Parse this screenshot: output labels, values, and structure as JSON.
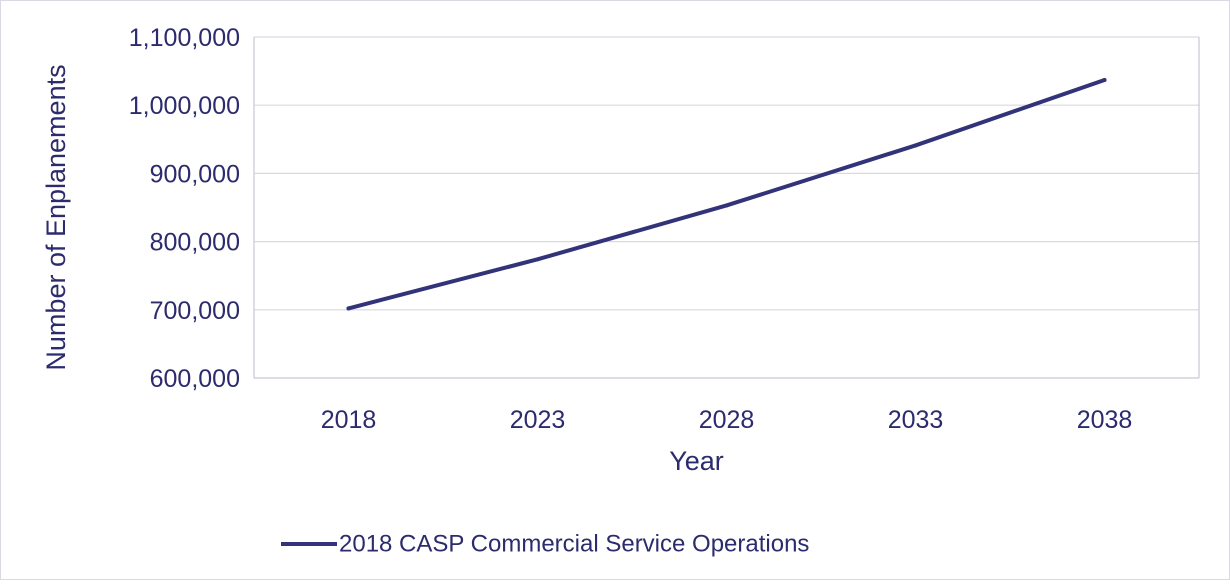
{
  "chart_data": {
    "type": "line",
    "title": "",
    "xlabel": "Year",
    "ylabel": "Number of Enplanements",
    "x": [
      "2018",
      "2023",
      "2028",
      "2033",
      "2038"
    ],
    "series": [
      {
        "name": "2018 CASP Commercial Service Operations",
        "values": [
          702000,
          774000,
          853000,
          941000,
          1037000
        ]
      }
    ],
    "ylim": [
      600000,
      1100000
    ],
    "yticks": [
      600000,
      700000,
      800000,
      900000,
      1000000,
      1100000
    ],
    "ytick_labels": [
      "600,000",
      "700,000",
      "800,000",
      "900,000",
      "1,000,000",
      "1,100,000"
    ],
    "grid": "horizontal",
    "legend_position": "bottom",
    "colors": {
      "series": "#33337a",
      "text": "#2b2b6e",
      "grid": "#d9d9e3",
      "axis": "#c8c8d6"
    }
  }
}
